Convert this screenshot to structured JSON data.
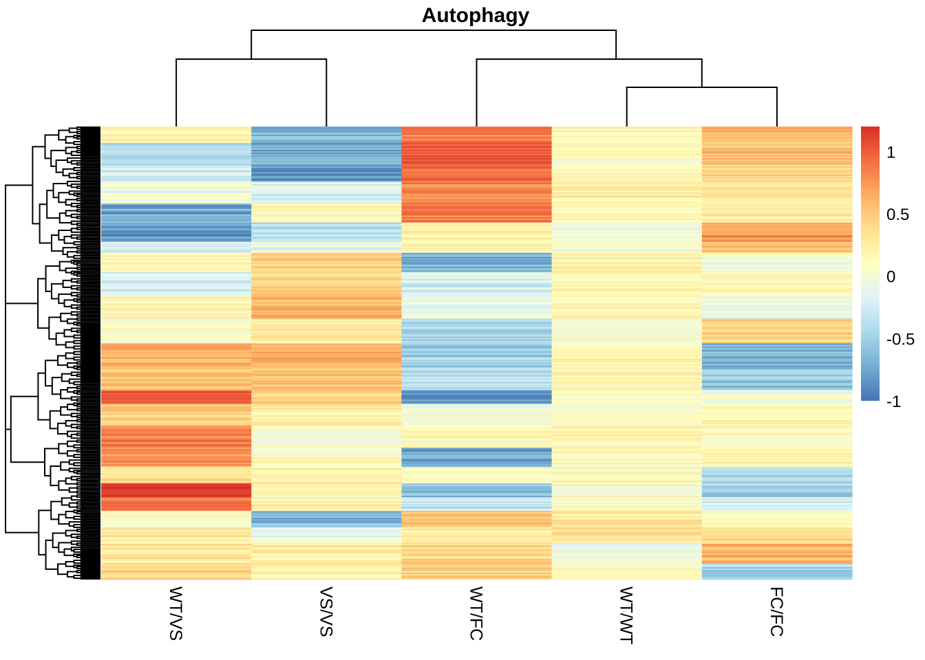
{
  "chart_data": {
    "type": "heatmap",
    "title": "Autophagy",
    "columns": [
      "WT/VS",
      "VS/VS",
      "WT/FC",
      "WT/WT",
      "FC/FC"
    ],
    "row_count": 330,
    "value_range": [
      -1,
      1.2
    ],
    "colorbar": {
      "ticks": [
        1,
        0.5,
        0,
        -0.5,
        -1
      ],
      "tick_labels": [
        "1",
        "0.5",
        "0",
        "-0.5",
        "-1"
      ],
      "palette": [
        "#4575b4",
        "#74add1",
        "#abd9e9",
        "#e0f3f8",
        "#ffffbf",
        "#fee090",
        "#fdae61",
        "#f46d43",
        "#d73027"
      ]
    },
    "column_dendrogram": {
      "order": [
        "WT/VS",
        "VS/VS",
        "WT/FC",
        "WT/WT",
        "FC/FC"
      ],
      "merges": [
        {
          "members": [
            "WT/VS",
            "VS/VS"
          ],
          "height": 0.7
        },
        {
          "members": [
            "WT/WT",
            "FC/FC"
          ],
          "height": 0.55
        },
        {
          "members": [
            "WT/FC",
            "WT/WT|FC/FC"
          ],
          "height": 0.7
        },
        {
          "members": [
            "WT/VS|VS/VS",
            "WT/FC|WT/WT|FC/FC"
          ],
          "height": 1.0
        }
      ]
    },
    "row_blocks": [
      {
        "rows": [
          0,
          12
        ],
        "values": [
          0.1,
          -0.7,
          0.8,
          0.05,
          0.55
        ]
      },
      {
        "rows": [
          12,
          28
        ],
        "values": [
          -0.45,
          -0.75,
          1.0,
          0.0,
          0.5
        ]
      },
      {
        "rows": [
          28,
          40
        ],
        "values": [
          -0.35,
          -0.85,
          0.95,
          0.05,
          0.35
        ]
      },
      {
        "rows": [
          40,
          56
        ],
        "values": [
          -0.15,
          -0.3,
          0.8,
          0.15,
          0.2
        ]
      },
      {
        "rows": [
          56,
          70
        ],
        "values": [
          -0.75,
          0.05,
          0.8,
          0.0,
          0.2
        ]
      },
      {
        "rows": [
          70,
          84
        ],
        "values": [
          -0.85,
          -0.4,
          0.15,
          -0.05,
          0.7
        ]
      },
      {
        "rows": [
          84,
          92
        ],
        "values": [
          -0.3,
          -0.2,
          0.1,
          -0.1,
          0.5
        ]
      },
      {
        "rows": [
          92,
          106
        ],
        "values": [
          0.1,
          0.4,
          -0.7,
          0.1,
          -0.1
        ]
      },
      {
        "rows": [
          106,
          124
        ],
        "values": [
          -0.3,
          0.35,
          -0.3,
          0.1,
          0.0
        ]
      },
      {
        "rows": [
          124,
          140
        ],
        "values": [
          0.05,
          0.55,
          -0.2,
          0.05,
          -0.15
        ]
      },
      {
        "rows": [
          140,
          158
        ],
        "values": [
          0.0,
          0.2,
          -0.5,
          0.0,
          0.4
        ]
      },
      {
        "rows": [
          158,
          176
        ],
        "values": [
          0.55,
          0.6,
          -0.55,
          0.1,
          -0.7
        ]
      },
      {
        "rows": [
          176,
          192
        ],
        "values": [
          0.45,
          0.45,
          -0.4,
          0.1,
          -0.6
        ]
      },
      {
        "rows": [
          192,
          202
        ],
        "values": [
          1.0,
          0.4,
          -0.9,
          -0.05,
          -0.1
        ]
      },
      {
        "rows": [
          202,
          218
        ],
        "values": [
          0.4,
          0.15,
          -0.1,
          -0.05,
          0.1
        ]
      },
      {
        "rows": [
          218,
          234
        ],
        "values": [
          0.8,
          -0.05,
          0.05,
          0.1,
          0.0
        ]
      },
      {
        "rows": [
          234,
          248
        ],
        "values": [
          0.7,
          0.05,
          -0.8,
          0.05,
          0.1
        ]
      },
      {
        "rows": [
          248,
          260
        ],
        "values": [
          0.3,
          0.2,
          -0.05,
          0.1,
          -0.5
        ]
      },
      {
        "rows": [
          260,
          270
        ],
        "values": [
          1.15,
          0.1,
          -0.7,
          0.0,
          -0.55
        ]
      },
      {
        "rows": [
          270,
          280
        ],
        "values": [
          0.85,
          0.1,
          -0.4,
          0.0,
          -0.3
        ]
      },
      {
        "rows": [
          280,
          292
        ],
        "values": [
          -0.05,
          -0.65,
          0.45,
          0.2,
          0.0
        ]
      },
      {
        "rows": [
          292,
          304
        ],
        "values": [
          0.2,
          -0.15,
          0.2,
          0.25,
          0.3
        ]
      },
      {
        "rows": [
          304,
          318
        ],
        "values": [
          0.25,
          0.15,
          0.35,
          -0.1,
          0.55
        ]
      },
      {
        "rows": [
          318,
          330
        ],
        "values": [
          0.3,
          0.1,
          0.4,
          0.0,
          -0.5
        ]
      }
    ]
  }
}
